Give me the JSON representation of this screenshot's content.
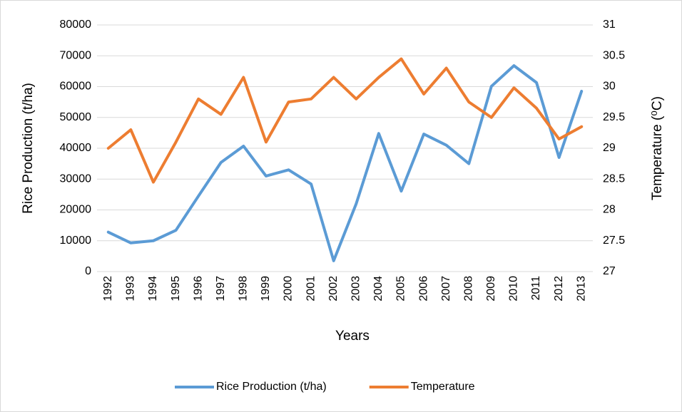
{
  "chart_data": {
    "type": "line",
    "categories": [
      "1992",
      "1993",
      "1994",
      "1995",
      "1996",
      "1997",
      "1998",
      "1999",
      "2000",
      "2001",
      "2002",
      "2003",
      "2004",
      "2005",
      "2006",
      "2007",
      "2008",
      "2009",
      "2010",
      "2011",
      "2012",
      "2013"
    ],
    "x_label": "Years",
    "y_label": "Rice Production (t/ha)",
    "y2_label": "Temperature (⁰C)",
    "ylim": [
      0,
      80000
    ],
    "yticks": [
      0,
      10000,
      20000,
      30000,
      40000,
      50000,
      60000,
      70000,
      80000
    ],
    "y2lim": [
      27,
      31
    ],
    "y2ticks": [
      27,
      27.5,
      28,
      28.5,
      29,
      29.5,
      30,
      30.5,
      31
    ],
    "grid": true,
    "legend": "bottom",
    "series": [
      {
        "name": "Rice Production (t/ha)",
        "color": "#5b9bd5",
        "values": [
          12800,
          9300,
          10000,
          13400,
          24500,
          35400,
          40700,
          31000,
          33000,
          28400,
          3500,
          22000,
          44800,
          26100,
          44600,
          41000,
          35000,
          60100,
          66800,
          61300,
          37000,
          58500
        ]
      },
      {
        "name": "Temperature",
        "color": "#ed7d31",
        "axis": "y2",
        "values": [
          29.0,
          29.3,
          28.45,
          29.1,
          29.8,
          29.55,
          30.15,
          29.1,
          29.75,
          29.8,
          30.15,
          29.8,
          30.15,
          30.45,
          29.88,
          30.3,
          29.75,
          29.5,
          29.98,
          29.65,
          29.15,
          29.35
        ]
      }
    ]
  }
}
